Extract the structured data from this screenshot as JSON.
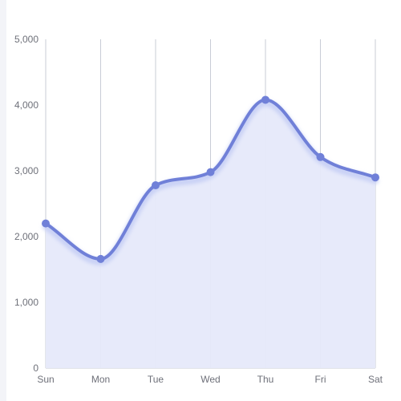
{
  "chart_data": {
    "type": "area",
    "title": "",
    "xlabel": "",
    "ylabel": "",
    "categories": [
      "Sun",
      "Mon",
      "Tue",
      "Wed",
      "Thu",
      "Fri",
      "Sat"
    ],
    "series": [
      {
        "values": [
          2200,
          1660,
          2780,
          2980,
          4080,
          3210,
          2900
        ]
      }
    ],
    "ylim": [
      0,
      5000
    ],
    "y_ticks": [
      0,
      1000,
      2000,
      3000,
      4000,
      5000
    ],
    "y_tick_labels": [
      "0",
      "1,000",
      "2,000",
      "3,000",
      "4,000",
      "5,000"
    ],
    "grid": "vertical",
    "smooth": true,
    "legend": "none",
    "colors": {
      "line": "#7080d8",
      "area": "#e6e9fa",
      "glow": "#c9d1f5",
      "grid": "#c8ccd6",
      "axis_text": "#6e7079",
      "left_rail": "#f3f4f8"
    }
  }
}
